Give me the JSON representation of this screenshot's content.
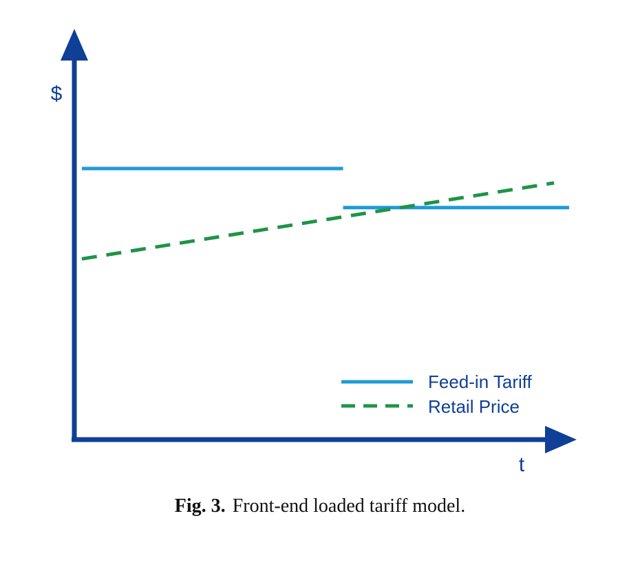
{
  "figure": {
    "caption_number": "Fig. 3.",
    "caption_text": "Front-end loaded tariff model."
  },
  "colors": {
    "axis": "#0f3f96",
    "feed_in_tariff": "#1e9ad8",
    "retail_price": "#1e9447"
  },
  "chart_data": {
    "type": "line",
    "title": "",
    "xlabel": "t",
    "ylabel": "$",
    "xlim": [
      0,
      10
    ],
    "ylim": [
      0,
      10
    ],
    "grid": false,
    "legend_position": "bottom-right",
    "series": [
      {
        "name": "Feed-in Tariff",
        "style": "solid",
        "color": "#1e9ad8",
        "segments": [
          {
            "x": [
              0.15,
              5.35
            ],
            "y": [
              6.6,
              6.6
            ]
          },
          {
            "x": [
              5.35,
              9.85
            ],
            "y": [
              5.65,
              5.65
            ]
          }
        ]
      },
      {
        "name": "Retail Price",
        "style": "dashed",
        "color": "#1e9447",
        "segments": [
          {
            "x": [
              0.15,
              9.55
            ],
            "y": [
              4.4,
              6.25
            ]
          }
        ]
      }
    ]
  }
}
